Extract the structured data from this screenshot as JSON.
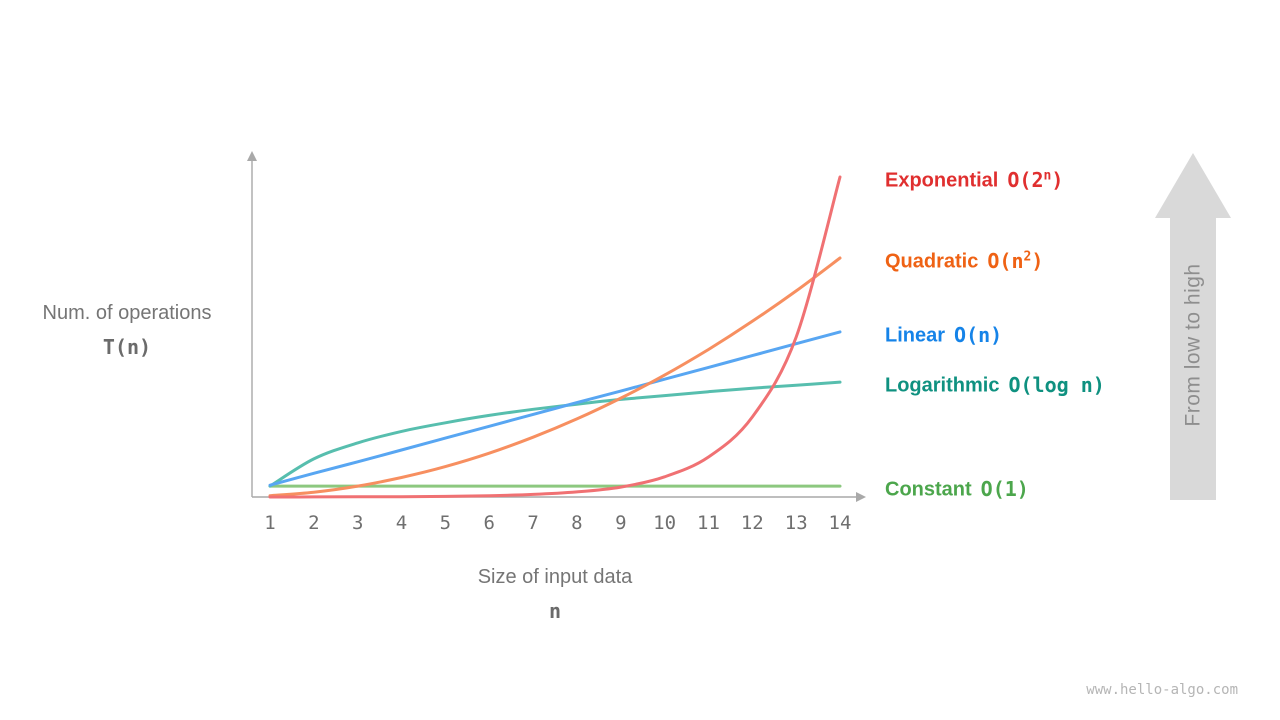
{
  "watermark": "www.hello-algo.com",
  "chart_data": {
    "type": "line",
    "x": [
      1,
      2,
      3,
      4,
      5,
      6,
      7,
      8,
      9,
      10,
      11,
      12,
      13,
      14
    ],
    "xlabel": "Size of input data",
    "xlabel_symbol": "n",
    "ylabel": "Num. of operations",
    "ylabel_symbol": "T(n)",
    "ylim": [
      0,
      1
    ],
    "grid": false,
    "legend_position": "right",
    "arrow_label": "From low to high",
    "series": [
      {
        "name": "Exponential",
        "o_pre": "O(2",
        "o_sup": "n",
        "o_post": ")",
        "text_color": "#e02f2f",
        "curve_color": "#f07173",
        "values": [
          0.0001,
          0.0002,
          0.0005,
          0.001,
          0.002,
          0.004,
          0.008,
          0.016,
          0.031,
          0.063,
          0.125,
          0.25,
          0.5,
          1.0
        ]
      },
      {
        "name": "Quadratic",
        "o_pre": "O(n",
        "o_sup": "2",
        "o_post": ")",
        "text_color": "#ef6214",
        "curve_color": "#f78f60",
        "values": [
          0.004,
          0.015,
          0.034,
          0.061,
          0.095,
          0.137,
          0.187,
          0.244,
          0.309,
          0.381,
          0.461,
          0.549,
          0.644,
          0.747
        ]
      },
      {
        "name": "Linear",
        "o_pre": "O(n)",
        "o_sup": "",
        "o_post": "",
        "text_color": "#1583e8",
        "curve_color": "#58a6f2",
        "values": [
          0.037,
          0.074,
          0.11,
          0.147,
          0.184,
          0.221,
          0.258,
          0.295,
          0.331,
          0.368,
          0.405,
          0.442,
          0.479,
          0.516
        ]
      },
      {
        "name": "Logarithmic",
        "o_pre": "O(log n)",
        "o_sup": "",
        "o_post": "",
        "text_color": "#0f9180",
        "curve_color": "#57beae",
        "values": [
          0.034,
          0.119,
          0.169,
          0.205,
          0.232,
          0.255,
          0.274,
          0.29,
          0.305,
          0.317,
          0.329,
          0.34,
          0.349,
          0.359
        ]
      },
      {
        "name": "Constant",
        "o_pre": "O(1)",
        "o_sup": "",
        "o_post": "",
        "text_color": "#4ca64c",
        "curve_color": "#8cc87f",
        "values": [
          0.034,
          0.034,
          0.034,
          0.034,
          0.034,
          0.034,
          0.034,
          0.034,
          0.034,
          0.034,
          0.034,
          0.034,
          0.034,
          0.034
        ]
      }
    ]
  }
}
